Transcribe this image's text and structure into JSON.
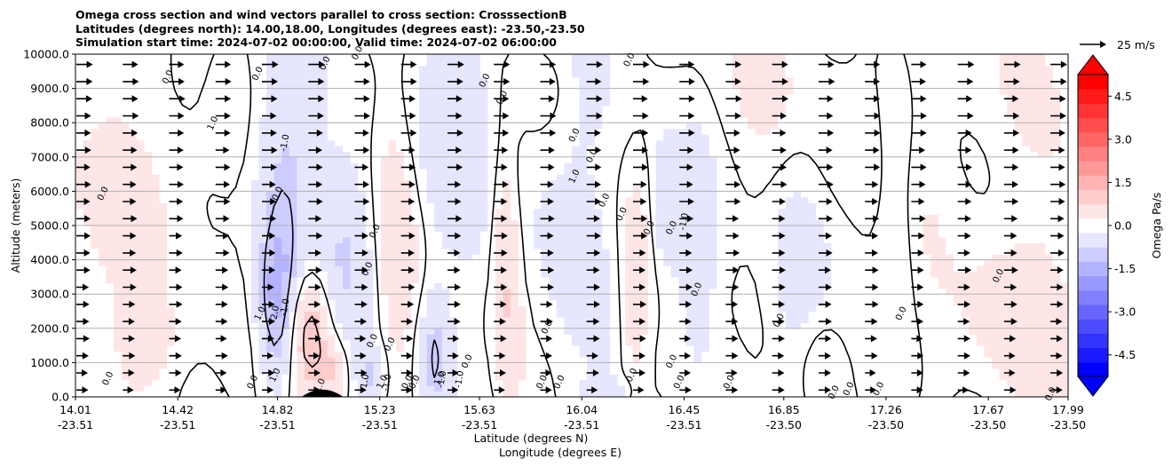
{
  "title": {
    "line1": "Omega cross section and wind vectors parallel to cross section: CrosssectionB",
    "line2": "Latitudes (degrees north): 14.00,18.00, Longitudes (degrees east): -23.50,-23.50",
    "line3": "Simulation start time: 2024-07-02 00:00:00, Valid time: 2024-07-02 06:00:00"
  },
  "chart_data": {
    "type": "heatmap",
    "description_type": "filled contour cross section with line contours and wind vectors",
    "x_axis": {
      "label_lat": "Latitude (degrees N)",
      "label_lon": "Longitude (degrees E)",
      "range": [
        14.01,
        17.99
      ],
      "ticks": [
        {
          "lat": 14.01,
          "lat_label": "14.01",
          "lon_label": "-23.51"
        },
        {
          "lat": 14.42,
          "lat_label": "14.42",
          "lon_label": "-23.51"
        },
        {
          "lat": 14.82,
          "lat_label": "14.82",
          "lon_label": "-23.51"
        },
        {
          "lat": 15.23,
          "lat_label": "15.23",
          "lon_label": "-23.51"
        },
        {
          "lat": 15.63,
          "lat_label": "15.63",
          "lon_label": "-23.51"
        },
        {
          "lat": 16.04,
          "lat_label": "16.04",
          "lon_label": "-23.51"
        },
        {
          "lat": 16.45,
          "lat_label": "16.45",
          "lon_label": "-23.51"
        },
        {
          "lat": 16.85,
          "lat_label": "16.85",
          "lon_label": "-23.50"
        },
        {
          "lat": 17.26,
          "lat_label": "17.26",
          "lon_label": "-23.50"
        },
        {
          "lat": 17.67,
          "lat_label": "17.67",
          "lon_label": "-23.50"
        },
        {
          "lat": 17.99,
          "lat_label": "17.99",
          "lon_label": "-23.50"
        }
      ]
    },
    "y_axis": {
      "label": "Altitude (meters)",
      "range": [
        0,
        10000
      ],
      "ticks": [
        "0.0",
        "1000.0",
        "2000.0",
        "3000.0",
        "4000.0",
        "5000.0",
        "6000.0",
        "7000.0",
        "8000.0",
        "9000.0",
        "10000.0"
      ],
      "gridlines": true
    },
    "colorbar": {
      "label": "Omega Pa/s",
      "range": [
        -5.25,
        5.25
      ],
      "extend": "both",
      "ticks": [
        "-4.5",
        "-3.0",
        "-1.5",
        "0.0",
        "1.5",
        "3.0",
        "4.5"
      ],
      "tick_values": [
        -4.5,
        -3.0,
        -1.5,
        0.0,
        1.5,
        3.0,
        4.5
      ],
      "negative_color": "#0000ff",
      "positive_color": "#ff0000"
    },
    "vector_key": {
      "label": "25 m/s",
      "speed": 25
    },
    "contour_labels": [
      {
        "text": "0.0",
        "lat": 14.39,
        "alt": 9300
      },
      {
        "text": "0.0",
        "lat": 14.75,
        "alt": 9400
      },
      {
        "text": "0.0",
        "lat": 15.02,
        "alt": 9700
      },
      {
        "text": "0.0",
        "lat": 15.15,
        "alt": 10000
      },
      {
        "text": "0.0",
        "lat": 15.66,
        "alt": 9200
      },
      {
        "text": "0.0",
        "lat": 15.73,
        "alt": 8700
      },
      {
        "text": "0.0",
        "lat": 16.24,
        "alt": 9800
      },
      {
        "text": "1.0",
        "lat": 14.57,
        "alt": 7950
      },
      {
        "text": "-1.0",
        "lat": 14.86,
        "alt": 7400
      },
      {
        "text": "0.0",
        "lat": 16.02,
        "alt": 7600
      },
      {
        "text": "0.0",
        "lat": 16.09,
        "alt": 7000
      },
      {
        "text": "0.0",
        "lat": 14.13,
        "alt": 5900
      },
      {
        "text": "0.0",
        "lat": 14.83,
        "alt": 5900
      },
      {
        "text": "0.0",
        "lat": 16.14,
        "alt": 5700
      },
      {
        "text": "0.0",
        "lat": 16.21,
        "alt": 5300
      },
      {
        "text": "1.0",
        "lat": 16.02,
        "alt": 6400
      },
      {
        "text": "-1.0",
        "lat": 16.46,
        "alt": 5100
      },
      {
        "text": "0.0",
        "lat": 16.32,
        "alt": 4900
      },
      {
        "text": "0.0",
        "lat": 16.41,
        "alt": 4900
      },
      {
        "text": "0.0",
        "lat": 15.22,
        "alt": 4800
      },
      {
        "text": "0.0",
        "lat": 15.19,
        "alt": 3700
      },
      {
        "text": "0.0",
        "lat": 17.72,
        "alt": 3500
      },
      {
        "text": "0.0",
        "lat": 16.51,
        "alt": 3100
      },
      {
        "text": "0.0",
        "lat": 16.84,
        "alt": 2200
      },
      {
        "text": "0.0",
        "lat": 17.33,
        "alt": 2400
      },
      {
        "text": "0.0",
        "lat": 15.91,
        "alt": 2000
      },
      {
        "text": "-2.0",
        "lat": 14.82,
        "alt": 2400
      },
      {
        "text": "-1.0",
        "lat": 14.86,
        "alt": 2600
      },
      {
        "text": "1.0",
        "lat": 14.76,
        "alt": 2400
      },
      {
        "text": "0.0",
        "lat": 15.21,
        "alt": 1600
      },
      {
        "text": "0.0",
        "lat": 15.28,
        "alt": 1500
      },
      {
        "text": "0.0",
        "lat": 15.59,
        "alt": 1000
      },
      {
        "text": "0.0",
        "lat": 16.41,
        "alt": 1000
      },
      {
        "text": "0.0",
        "lat": 14.15,
        "alt": 500
      },
      {
        "text": "0.0",
        "lat": 14.73,
        "alt": 400
      },
      {
        "text": "1.0",
        "lat": 14.82,
        "alt": 600
      },
      {
        "text": "1.0",
        "lat": 15.0,
        "alt": 300
      },
      {
        "text": "-1.0",
        "lat": 15.18,
        "alt": 400
      },
      {
        "text": "-1.0",
        "lat": 15.27,
        "alt": 400
      },
      {
        "text": "1.0",
        "lat": 15.25,
        "alt": 400
      },
      {
        "text": "0.0",
        "lat": 15.35,
        "alt": 400
      },
      {
        "text": "0.0",
        "lat": 15.38,
        "alt": 400
      },
      {
        "text": "1.0",
        "lat": 15.48,
        "alt": 500
      },
      {
        "text": "-1.0",
        "lat": 15.49,
        "alt": 500
      },
      {
        "text": "-1.0",
        "lat": 15.56,
        "alt": 500
      },
      {
        "text": "0.0",
        "lat": 15.89,
        "alt": 400
      },
      {
        "text": "0.0",
        "lat": 15.96,
        "alt": 400
      },
      {
        "text": "0.0",
        "lat": 16.25,
        "alt": 600
      },
      {
        "text": "0.0",
        "lat": 16.44,
        "alt": 400
      },
      {
        "text": "0.0",
        "lat": 16.64,
        "alt": 400
      },
      {
        "text": "0.0",
        "lat": 17.06,
        "alt": 100
      },
      {
        "text": "0.0",
        "lat": 17.12,
        "alt": 200
      },
      {
        "text": "0.0",
        "lat": 17.24,
        "alt": 200
      },
      {
        "text": "0.0",
        "lat": 17.93,
        "alt": 50
      }
    ],
    "terrain": {
      "peak_lat": 15.0,
      "peak_alt": 200,
      "half_width_lat": 0.08
    }
  }
}
